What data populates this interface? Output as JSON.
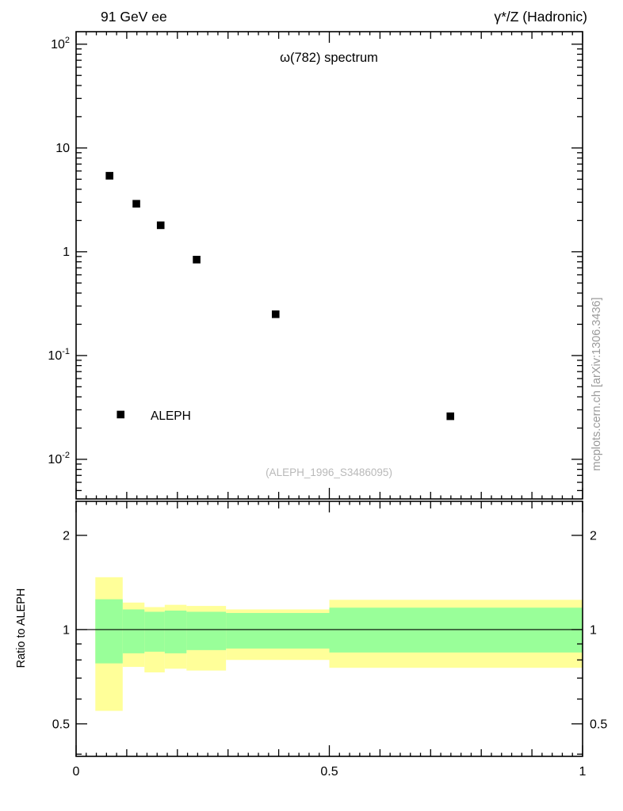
{
  "header": {
    "left": "91 GeV ee",
    "right": "γ*/Z (Hadronic)"
  },
  "side_text": "mcplots.cern.ch [arXiv:1306.3436]",
  "chart_data": [
    {
      "type": "scatter",
      "title": "ω(782) spectrum",
      "xlabel": "",
      "ylabel": "",
      "xlim": [
        0,
        1
      ],
      "ylim": [
        0.00415,
        132
      ],
      "yscale": "log",
      "marker": "filled-square",
      "marker_color": "#000000",
      "series": [
        {
          "name": "ALEPH",
          "x": [
            0.066,
            0.119,
            0.167,
            0.238,
            0.394,
            0.739
          ],
          "y": [
            5.4,
            2.9,
            1.8,
            0.84,
            0.25,
            0.026
          ]
        }
      ],
      "yticks": [
        {
          "v": 100,
          "mantissa": "10",
          "exp": "2"
        },
        {
          "v": 10,
          "mantissa": "10",
          "exp": ""
        },
        {
          "v": 1,
          "mantissa": "1",
          "exp": ""
        },
        {
          "v": 0.1,
          "mantissa": "10",
          "exp": "-1"
        },
        {
          "v": 0.01,
          "mantissa": "10",
          "exp": "-2"
        }
      ],
      "legend": {
        "label": "ALEPH",
        "x": 0.088,
        "y": 0.027
      },
      "watermark": "(ALEPH_1996_S3486095)"
    },
    {
      "type": "ratio-bands",
      "ylabel": "Ratio to ALEPH",
      "yscale": "log",
      "xlim": [
        0,
        1
      ],
      "ylim": [
        0.3936,
        2.569
      ],
      "reference_line": 1,
      "yticks": [
        {
          "v": 2,
          "label": "2"
        },
        {
          "v": 1,
          "label": "1"
        },
        {
          "v": 0.5,
          "label": "0.5"
        }
      ],
      "yminors": [
        0.4,
        0.6,
        0.7,
        0.8,
        0.9
      ],
      "xticks": [
        {
          "v": 0,
          "label": "0"
        },
        {
          "v": 0.5,
          "label": "0.5"
        },
        {
          "v": 1,
          "label": "1"
        }
      ],
      "band_colors": {
        "outer": "#ffff99",
        "inner": "#99ff99"
      },
      "bands": [
        {
          "x0": 0.038,
          "x1": 0.092,
          "outer": [
            0.55,
            1.47
          ],
          "inner": [
            0.78,
            1.25
          ]
        },
        {
          "x0": 0.092,
          "x1": 0.135,
          "outer": [
            0.76,
            1.22
          ],
          "inner": [
            0.84,
            1.16
          ]
        },
        {
          "x0": 0.135,
          "x1": 0.175,
          "outer": [
            0.73,
            1.18
          ],
          "inner": [
            0.85,
            1.14
          ]
        },
        {
          "x0": 0.175,
          "x1": 0.218,
          "outer": [
            0.75,
            1.2
          ],
          "inner": [
            0.84,
            1.15
          ]
        },
        {
          "x0": 0.218,
          "x1": 0.296,
          "outer": [
            0.74,
            1.19
          ],
          "inner": [
            0.86,
            1.14
          ]
        },
        {
          "x0": 0.296,
          "x1": 0.5,
          "outer": [
            0.8,
            1.16
          ],
          "inner": [
            0.87,
            1.13
          ]
        },
        {
          "x0": 0.5,
          "x1": 1.0,
          "outer": [
            0.755,
            1.245
          ],
          "inner": [
            0.845,
            1.175
          ]
        }
      ]
    }
  ]
}
